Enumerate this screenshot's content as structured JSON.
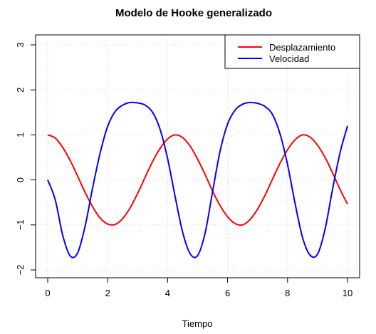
{
  "chart_data": {
    "type": "line",
    "title": "Modelo de Hooke generalizado",
    "xlabel": "Tiempo",
    "ylabel": "",
    "xlim": [
      0,
      10
    ],
    "ylim": [
      -2,
      3
    ],
    "xticks": [
      "0",
      "2",
      "4",
      "6",
      "8",
      "10"
    ],
    "yticks": [
      "−2",
      "−1",
      "0",
      "1",
      "2",
      "3"
    ],
    "grid": true,
    "legend_position": "top-right",
    "x": [
      0,
      0.25,
      0.5,
      0.75,
      1,
      1.25,
      1.5,
      1.75,
      2,
      2.25,
      2.5,
      2.75,
      3,
      3.25,
      3.5,
      3.75,
      4,
      4.25,
      4.5,
      4.75,
      5,
      5.25,
      5.5,
      5.75,
      6,
      6.25,
      6.5,
      6.75,
      7,
      7.25,
      7.5,
      7.75,
      8,
      8.25,
      8.5,
      8.75,
      9,
      9.25,
      9.5,
      9.75,
      10
    ],
    "series": [
      {
        "name": "Desplazamiento",
        "color": "#ff0000",
        "values": [
          1.0,
          0.93,
          0.72,
          0.43,
          0.08,
          -0.28,
          -0.6,
          -0.85,
          -0.98,
          -0.99,
          -0.86,
          -0.62,
          -0.3,
          0.06,
          0.41,
          0.7,
          0.91,
          1.0,
          0.94,
          0.75,
          0.46,
          0.12,
          -0.25,
          -0.57,
          -0.82,
          -0.97,
          -1.0,
          -0.88,
          -0.65,
          -0.34,
          0.02,
          0.37,
          0.67,
          0.89,
          1.0,
          0.95,
          0.77,
          0.5,
          0.16,
          -0.21,
          -0.54
        ]
      },
      {
        "name": "Velocidad",
        "color": "#0000ff",
        "values": [
          0.0,
          -0.44,
          -1.23,
          -1.69,
          -1.62,
          -1.02,
          -0.17,
          0.6,
          1.19,
          1.52,
          1.66,
          1.72,
          1.71,
          1.66,
          1.5,
          1.12,
          0.47,
          -0.37,
          -1.16,
          -1.64,
          -1.68,
          -1.18,
          -0.26,
          0.64,
          1.24,
          1.55,
          1.68,
          1.72,
          1.7,
          1.63,
          1.45,
          1.02,
          0.34,
          -0.52,
          -1.28,
          -1.67,
          -1.65,
          -1.1,
          -0.21,
          0.6,
          1.2
        ]
      }
    ]
  }
}
